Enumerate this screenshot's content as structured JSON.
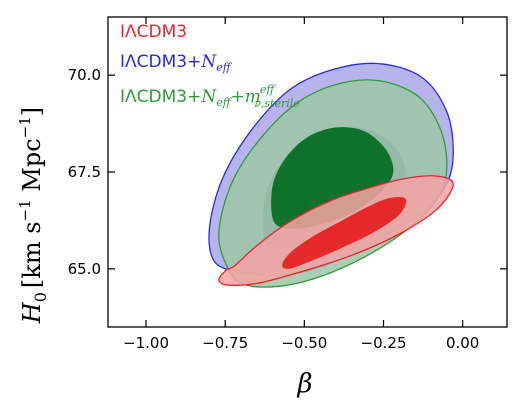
{
  "chart_data": {
    "type": "contour",
    "xlabel": "β",
    "ylabel": {
      "main": "H",
      "sub": "0",
      "units_prefix": "[km s",
      "sup": "−1",
      "units_suffix": " Mpc",
      "sup2": "−1",
      "close": "]"
    },
    "xlim": [
      -1.12,
      0.14
    ],
    "ylim": [
      63.5,
      71.5
    ],
    "xticks": [
      -1.0,
      -0.75,
      -0.5,
      -0.25,
      0.0
    ],
    "xtick_labels": [
      "−1.00",
      "−0.75",
      "−0.50",
      "−0.25",
      "0.00"
    ],
    "yticks": [
      65.0,
      67.5,
      70.0
    ],
    "ytick_labels": [
      "65.0",
      "67.5",
      "70.0"
    ],
    "grid": false,
    "legend_position": "top-left",
    "series": [
      {
        "name": "IΛCDM3",
        "legend": {
          "base": "IΛCDM3"
        },
        "color": "#e8242b",
        "inner_fill": "#e41a1c",
        "outer_fill": "#f4a3a3",
        "outer_contour": [
          [
            -0.72,
            65.08
          ],
          [
            -0.65,
            65.6
          ],
          [
            -0.55,
            66.2
          ],
          [
            -0.42,
            66.75
          ],
          [
            -0.3,
            67.08
          ],
          [
            -0.19,
            67.32
          ],
          [
            -0.09,
            67.4
          ],
          [
            -0.03,
            67.2
          ],
          [
            -0.08,
            66.55
          ],
          [
            -0.2,
            65.9
          ],
          [
            -0.35,
            65.35
          ],
          [
            -0.5,
            64.95
          ],
          [
            -0.64,
            64.64
          ],
          [
            -0.74,
            64.58
          ],
          [
            -0.77,
            64.72
          ],
          [
            -0.745,
            64.98
          ]
        ],
        "inner_contour": [
          [
            -0.57,
            65.12
          ],
          [
            -0.54,
            65.45
          ],
          [
            -0.47,
            65.85
          ],
          [
            -0.38,
            66.25
          ],
          [
            -0.3,
            66.6
          ],
          [
            -0.23,
            66.83
          ],
          [
            -0.18,
            66.8
          ],
          [
            -0.2,
            66.4
          ],
          [
            -0.28,
            65.95
          ],
          [
            -0.38,
            65.55
          ],
          [
            -0.48,
            65.2
          ],
          [
            -0.55,
            65.0
          ]
        ]
      },
      {
        "name": "IΛCDM3+Neff",
        "legend": {
          "base": "IΛCDM3+",
          "sub_main": "N",
          "sub": "eff"
        },
        "color": "#2a2ae0",
        "inner_fill": "#5a6fb0",
        "outer_fill": "#a9a7e6",
        "outer_contour": [
          [
            -0.78,
            65.15
          ],
          [
            -0.8,
            66.0
          ],
          [
            -0.76,
            67.3
          ],
          [
            -0.67,
            68.55
          ],
          [
            -0.55,
            69.6
          ],
          [
            -0.42,
            70.12
          ],
          [
            -0.27,
            70.3
          ],
          [
            -0.13,
            69.95
          ],
          [
            -0.05,
            69.05
          ],
          [
            -0.03,
            68.0
          ],
          [
            -0.05,
            67.2
          ],
          [
            -0.12,
            66.5
          ],
          [
            -0.25,
            65.85
          ],
          [
            -0.4,
            65.2
          ],
          [
            -0.55,
            64.85
          ],
          [
            -0.68,
            64.9
          ]
        ],
        "inner_contour": [
          [
            -0.62,
            65.6
          ],
          [
            -0.63,
            66.5
          ],
          [
            -0.6,
            67.4
          ],
          [
            -0.53,
            68.1
          ],
          [
            -0.42,
            68.55
          ],
          [
            -0.31,
            68.62
          ],
          [
            -0.22,
            68.2
          ],
          [
            -0.18,
            67.5
          ],
          [
            -0.21,
            66.9
          ],
          [
            -0.3,
            66.3
          ],
          [
            -0.43,
            65.85
          ],
          [
            -0.55,
            65.55
          ]
        ]
      },
      {
        "name": "IΛCDM3+Neff+mν,sterile eff",
        "legend": {
          "base": "IΛCDM3+",
          "sub_main": "N",
          "sub": "eff",
          "plus": "+",
          "m": "m",
          "m_sub": "ν,sterile",
          "m_sup": "eff"
        },
        "color": "#2e9b3a",
        "inner_fill": "#006a1c",
        "outer_fill": "#9ec7a6",
        "outer_contour": [
          [
            -0.74,
            65.0
          ],
          [
            -0.77,
            65.9
          ],
          [
            -0.73,
            67.2
          ],
          [
            -0.64,
            68.35
          ],
          [
            -0.52,
            69.3
          ],
          [
            -0.39,
            69.78
          ],
          [
            -0.26,
            69.85
          ],
          [
            -0.14,
            69.45
          ],
          [
            -0.07,
            68.6
          ],
          [
            -0.05,
            67.6
          ],
          [
            -0.08,
            66.8
          ],
          [
            -0.17,
            66.05
          ],
          [
            -0.3,
            65.35
          ],
          [
            -0.45,
            64.8
          ],
          [
            -0.58,
            64.55
          ],
          [
            -0.69,
            64.6
          ]
        ],
        "inner_contour": [
          [
            -0.6,
            66.3
          ],
          [
            -0.6,
            67.15
          ],
          [
            -0.56,
            67.85
          ],
          [
            -0.49,
            68.4
          ],
          [
            -0.4,
            68.65
          ],
          [
            -0.31,
            68.55
          ],
          [
            -0.24,
            68.05
          ],
          [
            -0.22,
            67.45
          ],
          [
            -0.27,
            66.9
          ],
          [
            -0.36,
            66.4
          ],
          [
            -0.47,
            66.1
          ],
          [
            -0.56,
            66.05
          ]
        ]
      }
    ]
  }
}
